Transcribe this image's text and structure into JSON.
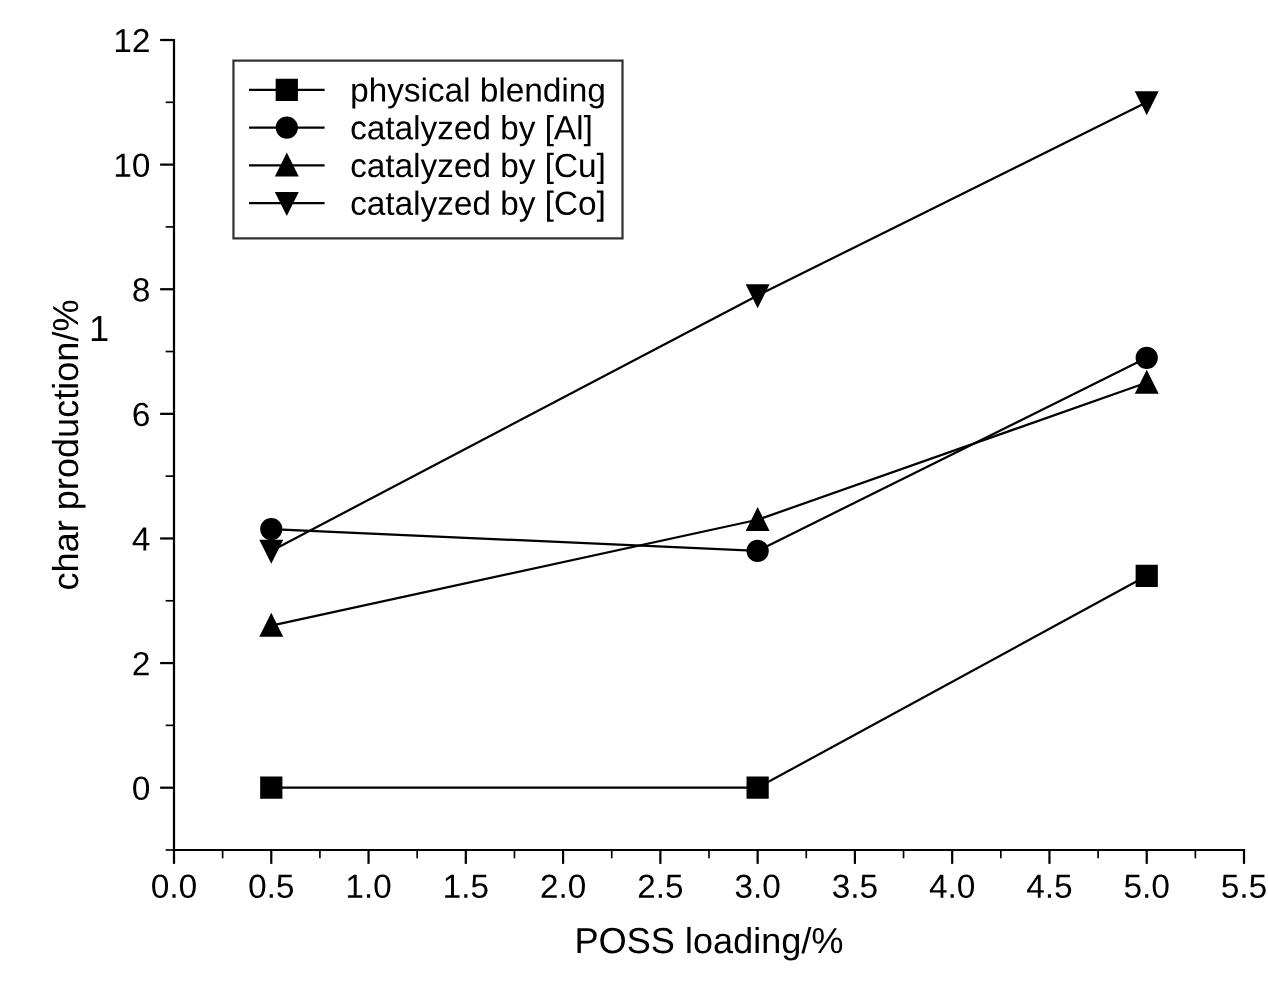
{
  "chart_data": {
    "type": "line",
    "xlabel": "POSS loading/%",
    "ylabel": "char production/%",
    "annotations": [
      "1"
    ],
    "x": [
      0.5,
      3,
      5
    ],
    "series": [
      {
        "name": "physical blending",
        "color": "#000000",
        "marker": "square",
        "values": [
          0,
          0,
          3.4
        ]
      },
      {
        "name": "catalyzed by [Al]",
        "color": "#000000",
        "marker": "circle",
        "values": [
          4.15,
          3.8,
          6.9
        ]
      },
      {
        "name": "catalyzed by [Cu]",
        "color": "#000000",
        "marker": "triangle",
        "values": [
          2.6,
          4.3,
          6.5
        ]
      },
      {
        "name": "catalyzed by [Co]",
        "color": "#000000",
        "marker": "triangle_down",
        "values": [
          3.8,
          7.9,
          11.0
        ]
      }
    ],
    "xlim": [
      0,
      5.5
    ],
    "xticks": [
      {
        "value": 0,
        "label": "0.0"
      },
      {
        "value": 0.5,
        "label": "0.5"
      },
      {
        "value": 1,
        "label": "1.0"
      },
      {
        "value": 1.5,
        "label": "1.5"
      },
      {
        "value": 2,
        "label": "2.0"
      },
      {
        "value": 2.5,
        "label": "2.5"
      },
      {
        "value": 3,
        "label": "3.0"
      },
      {
        "value": 3.5,
        "label": "3.5"
      },
      {
        "value": 4,
        "label": "4.0"
      },
      {
        "value": 4.5,
        "label": "4.5"
      },
      {
        "value": 5,
        "label": "5.0"
      },
      {
        "value": 5.5,
        "label": "5.5"
      }
    ],
    "ylim": [
      -1,
      12
    ],
    "yticks": [
      0,
      2,
      4,
      6,
      8,
      10,
      12
    ],
    "grid": false,
    "legend": "top left",
    "line_style": "solid"
  }
}
